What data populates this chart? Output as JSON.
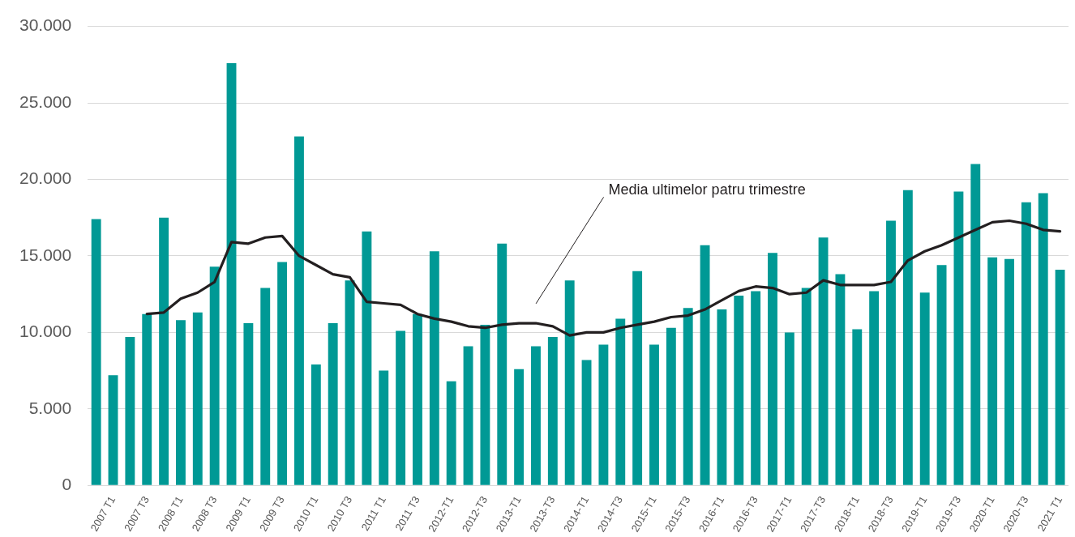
{
  "chart_data": {
    "type": "bar",
    "categories": [
      null,
      "2007 T1",
      null,
      "2007 T3",
      null,
      "2008 T1",
      null,
      "2008 T3",
      null,
      "2009 T1",
      null,
      "2009 T3",
      null,
      "2010 T1",
      null,
      "2010 T3",
      null,
      "2011 T1",
      null,
      "2011 T3",
      null,
      "2012-T1",
      null,
      "2012-T3",
      null,
      "2013-T1",
      null,
      "2013-T3",
      null,
      "2014-T1",
      null,
      "2014-T3",
      null,
      "2015-T1",
      null,
      "2015-T3",
      null,
      "2016-T1",
      null,
      "2016-T3",
      null,
      "2017-T1",
      null,
      "2017-T3",
      null,
      "2018-T1",
      null,
      "2018-T3",
      null,
      "2019-T1",
      null,
      "2019-T3",
      null,
      "2020-T1",
      null,
      "2020-T3",
      null,
      "2021 T1"
    ],
    "series": [
      {
        "color": "#009995",
        "values": [
          17400,
          7200,
          9700,
          11200,
          17500,
          10800,
          11300,
          14300,
          27600,
          10600,
          12900,
          14600,
          22800,
          7900,
          10600,
          13400,
          16600,
          7500,
          10100,
          11200,
          15300,
          6800,
          9100,
          10500,
          15800,
          7600,
          9100,
          9700,
          13400,
          8200,
          9200,
          10900,
          14000,
          9200,
          10300,
          11600,
          15700,
          11500,
          12400,
          12700,
          15200,
          10000,
          12900,
          16200,
          13800,
          10200,
          12700,
          17300,
          19300,
          12600,
          14400,
          19200,
          21000,
          14900,
          14800,
          18500,
          19100,
          14100
        ]
      },
      {
        "type": "line",
        "name": "Media ultimelor patru trimestre",
        "color": "#231f20",
        "marker": "none",
        "line_style": "solid",
        "values": [
          null,
          null,
          null,
          11200,
          11300,
          12200,
          12600,
          13300,
          15900,
          15800,
          16200,
          16300,
          15000,
          14400,
          13800,
          13600,
          12000,
          11900,
          11800,
          11200,
          10900,
          10700,
          10400,
          10300,
          10500,
          10600,
          10600,
          10400,
          9800,
          10000,
          10000,
          10300,
          10500,
          10700,
          11000,
          11100,
          11500,
          12100,
          12700,
          13000,
          12900,
          12500,
          12600,
          13400,
          13100,
          13100,
          13100,
          13300,
          14700,
          15300,
          15700,
          16200,
          16700,
          17200,
          17300,
          17100,
          16700,
          16600
        ]
      }
    ],
    "ylim": [
      0,
      30000
    ],
    "yticks": [
      {
        "value": 0,
        "label": "0"
      },
      {
        "value": 5000,
        "label": "5.000"
      },
      {
        "value": 10000,
        "label": "10.000"
      },
      {
        "value": 15000,
        "label": "15.000"
      },
      {
        "value": 20000,
        "label": "20.000"
      },
      {
        "value": 25000,
        "label": "25.000"
      },
      {
        "value": 30000,
        "label": "30.000"
      }
    ],
    "grid": "y",
    "legend": false
  }
}
